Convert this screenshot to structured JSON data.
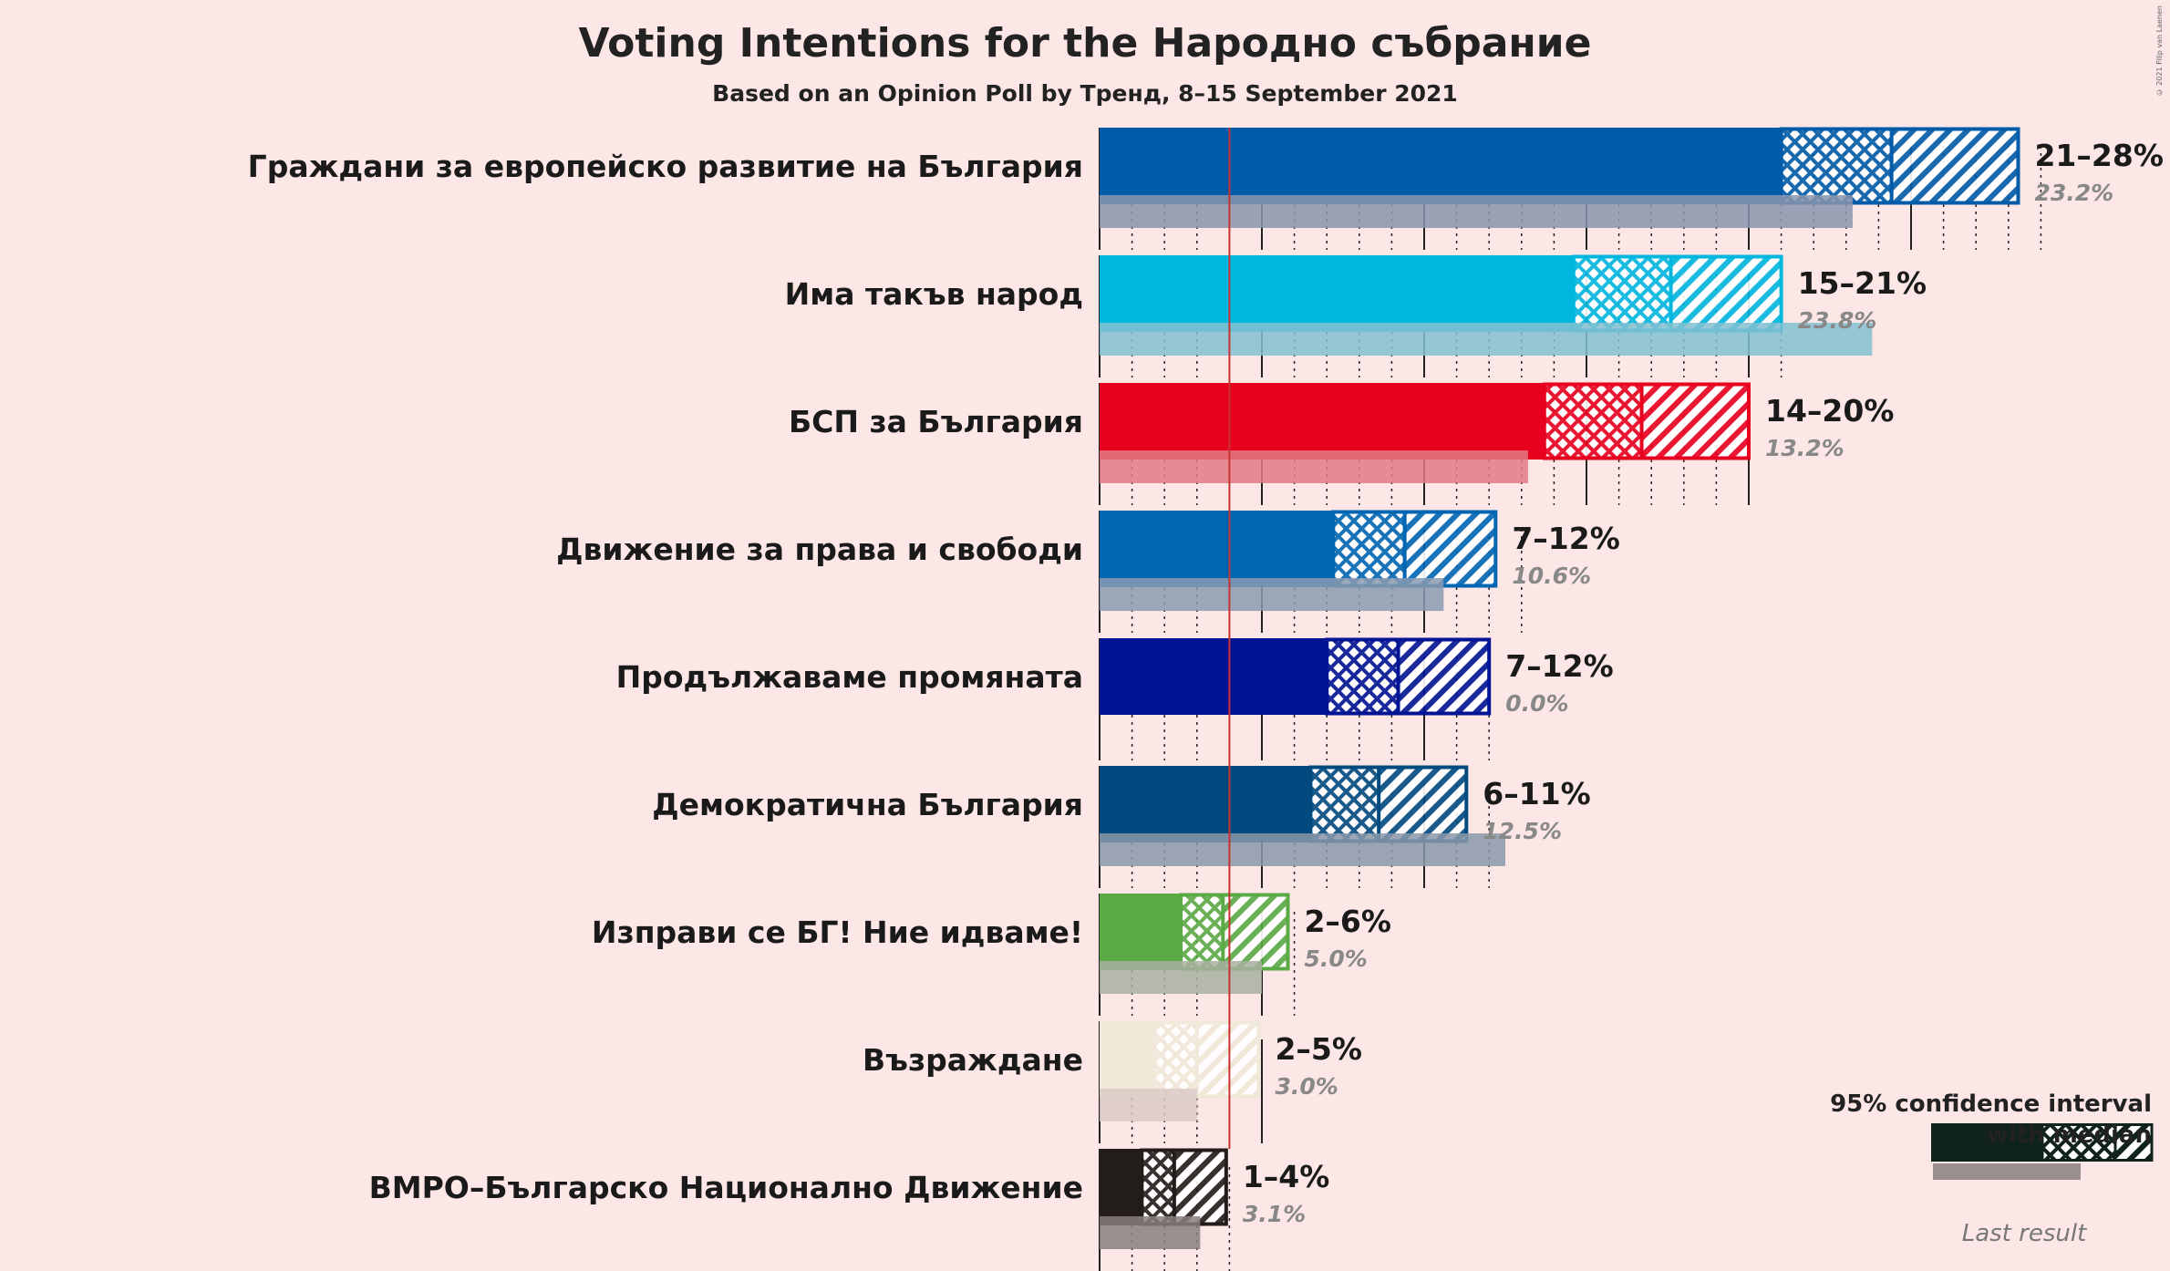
{
  "title": "Voting Intentions for the Народно събрание",
  "subtitle": "Based on an Opinion Poll by Тренд, 8–15 September 2021",
  "copyright": "© 2021 Filip van Laenen",
  "legend": {
    "title": "95% confidence interval with median",
    "title_line1": "95% confidence interval",
    "title_line2": "with median",
    "last_result": "Last result"
  },
  "chart_data": {
    "type": "bar",
    "orientation": "horizontal",
    "title": "Voting Intentions for the Народно събрание",
    "subtitle": "Based on an Opinion Poll by Тренд, 8–15 September 2021",
    "xlim": [
      0,
      29
    ],
    "threshold": 4,
    "gridlines_solid_every": 5,
    "gridlines_dotted_every": 1,
    "parties": [
      {
        "name": "Граждани за европейско развитие на България",
        "color": "#005ba9",
        "low": 21,
        "median": 24.4,
        "high": 28.3,
        "range_label": "21–28%",
        "last": 23.2,
        "last_label": "23.2%",
        "last_color": "#8a95ad"
      },
      {
        "name": "Има такъв народ",
        "color": "#00b7df",
        "low": 14.6,
        "median": 17.6,
        "high": 21.0,
        "range_label": "15–21%",
        "last": 23.8,
        "last_label": "23.8%",
        "last_color": "#82c0d0"
      },
      {
        "name": "БСП за България",
        "color": "#e8001f",
        "low": 13.7,
        "median": 16.7,
        "high": 20.0,
        "range_label": "14–20%",
        "last": 13.2,
        "last_label": "13.2%",
        "last_color": "#e07a86"
      },
      {
        "name": "Движение за права и свободи",
        "color": "#0066b3",
        "low": 7.2,
        "median": 9.4,
        "high": 12.2,
        "range_label": "7–12%",
        "last": 10.6,
        "last_label": "10.6%",
        "last_color": "#8a9ab0"
      },
      {
        "name": "Продължаваме промяната",
        "color": "#001494",
        "low": 7.0,
        "median": 9.2,
        "high": 12.0,
        "range_label": "7–12%",
        "last": 0.0,
        "last_label": "0.0%",
        "last_color": "#8a8fa8"
      },
      {
        "name": "Демократична България",
        "color": "#004a80",
        "low": 6.5,
        "median": 8.6,
        "high": 11.3,
        "range_label": "6–11%",
        "last": 12.5,
        "last_label": "12.5%",
        "last_color": "#8a98a8"
      },
      {
        "name": "Изправи се БГ! Ние идваме!",
        "color": "#5aaa46",
        "low": 2.5,
        "median": 3.8,
        "high": 5.8,
        "range_label": "2–6%",
        "last": 5.0,
        "last_label": "5.0%",
        "last_color": "#a8b0a0"
      },
      {
        "name": "Възраждане",
        "color": "#f0e8d8",
        "low": 1.7,
        "median": 3.0,
        "high": 4.9,
        "range_label": "2–5%",
        "last": 3.0,
        "last_label": "3.0%",
        "last_color": "#d9c9c4"
      },
      {
        "name": "ВМРО–Българско Национално Движение",
        "color": "#221c1a",
        "low": 1.3,
        "median": 2.3,
        "high": 3.9,
        "range_label": "1–4%",
        "last": 3.1,
        "last_label": "3.1%",
        "last_color": "#8a7e7e"
      }
    ]
  }
}
